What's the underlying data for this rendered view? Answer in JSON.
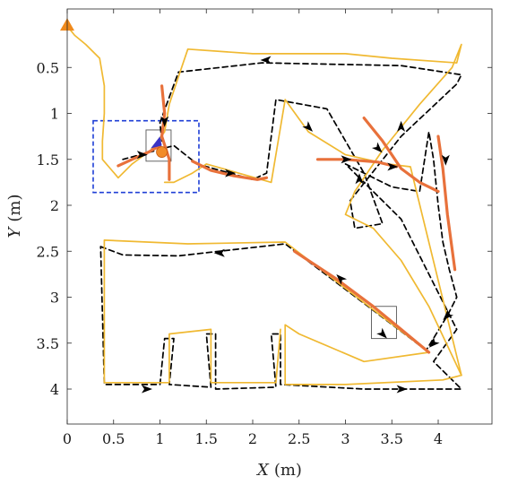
{
  "chart_data": {
    "type": "line",
    "title": "",
    "xlabel": "X (m)",
    "ylabel": "Y (m)",
    "xlabel_parts": {
      "var": "X",
      "unit": "(m)"
    },
    "ylabel_parts": {
      "var": "Y",
      "unit": "(m)"
    },
    "xlim": [
      0,
      4.6
    ],
    "ylim": [
      0,
      4.4
    ],
    "y_axis_inverted": true,
    "xticks": [
      0,
      0.5,
      1,
      1.5,
      2,
      2.5,
      3,
      3.5,
      4
    ],
    "xtick_labels": [
      "0",
      "0.5",
      "1",
      "1.5",
      "2",
      "2.5",
      "3",
      "3.5",
      "4"
    ],
    "yticks": [
      0.5,
      1,
      1.5,
      2,
      2.5,
      3,
      3.5,
      4
    ],
    "ytick_labels": [
      "0.5",
      "1",
      "1.5",
      "2",
      "2.5",
      "3",
      "3.5",
      "4"
    ],
    "grid": false,
    "legend": "none",
    "start_marker": {
      "x": 0.0,
      "y": 0.05
    },
    "series": [
      {
        "style": "dashed",
        "color": "#000000",
        "points": [
          [
            0.36,
            2.45
          ],
          [
            0.6,
            2.54
          ],
          [
            1.2,
            2.55
          ],
          [
            2.35,
            2.42
          ],
          [
            3.9,
            3.6
          ],
          [
            3.87,
            3.58
          ],
          [
            4.1,
            3.2
          ],
          [
            4.2,
            3.0
          ],
          [
            4.12,
            2.7
          ],
          [
            4.05,
            2.4
          ],
          [
            4.0,
            2.0
          ],
          [
            3.95,
            1.5
          ],
          [
            3.9,
            1.2
          ],
          [
            3.8,
            1.85
          ],
          [
            3.5,
            1.8
          ],
          [
            3.0,
            1.55
          ],
          [
            3.15,
            1.7
          ],
          [
            3.6,
            2.15
          ],
          [
            4.2,
            3.35
          ],
          [
            3.95,
            3.7
          ],
          [
            4.25,
            4.0
          ],
          [
            3.2,
            4.0
          ],
          [
            2.3,
            3.95
          ],
          [
            2.3,
            3.4
          ],
          [
            2.2,
            3.4
          ],
          [
            2.25,
            3.98
          ],
          [
            1.6,
            4.0
          ],
          [
            1.6,
            3.4
          ],
          [
            1.5,
            3.4
          ],
          [
            1.55,
            3.98
          ],
          [
            1.1,
            3.95
          ],
          [
            1.15,
            3.45
          ],
          [
            1.05,
            3.45
          ],
          [
            1.0,
            3.95
          ],
          [
            0.4,
            3.95
          ],
          [
            0.36,
            2.45
          ]
        ]
      },
      {
        "style": "dashed",
        "color": "#000000",
        "points": [
          [
            1.02,
            1.3
          ],
          [
            1.0,
            1.1
          ],
          [
            1.2,
            0.55
          ],
          [
            2.1,
            0.45
          ],
          [
            3.6,
            0.48
          ],
          [
            4.25,
            0.58
          ],
          [
            4.2,
            0.68
          ],
          [
            3.6,
            1.25
          ],
          [
            3.05,
            1.95
          ],
          [
            3.1,
            2.25
          ],
          [
            3.4,
            2.2
          ],
          [
            3.2,
            1.65
          ],
          [
            2.8,
            0.95
          ],
          [
            2.25,
            0.85
          ],
          [
            2.15,
            1.65
          ],
          [
            2.0,
            1.72
          ],
          [
            1.4,
            1.55
          ],
          [
            1.15,
            1.35
          ],
          [
            0.6,
            1.5
          ]
        ]
      },
      {
        "style": "solid",
        "color": "#f0b932",
        "points": [
          [
            0.0,
            0.05
          ],
          [
            0.08,
            0.15
          ],
          [
            0.2,
            0.25
          ],
          [
            0.35,
            0.4
          ],
          [
            0.4,
            0.7
          ],
          [
            0.4,
            1.0
          ],
          [
            0.38,
            1.3
          ],
          [
            0.38,
            1.5
          ],
          [
            0.55,
            1.7
          ],
          [
            0.7,
            1.55
          ],
          [
            0.9,
            1.4
          ],
          [
            1.05,
            1.2
          ],
          [
            1.1,
            0.9
          ],
          [
            1.2,
            0.6
          ],
          [
            1.3,
            0.3
          ],
          [
            2.0,
            0.35
          ],
          [
            3.0,
            0.35
          ],
          [
            3.5,
            0.4
          ],
          [
            4.2,
            0.45
          ],
          [
            4.25,
            0.25
          ],
          [
            4.15,
            0.5
          ],
          [
            3.8,
            0.9
          ],
          [
            3.4,
            1.4
          ],
          [
            3.1,
            1.85
          ],
          [
            3.0,
            2.1
          ],
          [
            3.3,
            2.25
          ],
          [
            3.6,
            2.6
          ],
          [
            3.9,
            3.1
          ],
          [
            4.25,
            3.85
          ],
          [
            4.05,
            3.9
          ],
          [
            3.0,
            3.95
          ],
          [
            2.35,
            3.95
          ],
          [
            2.35,
            3.3
          ],
          [
            2.5,
            3.4
          ],
          [
            3.2,
            3.7
          ],
          [
            3.9,
            3.6
          ],
          [
            2.35,
            2.4
          ],
          [
            1.3,
            2.42
          ],
          [
            0.4,
            2.38
          ],
          [
            0.4,
            3.93
          ],
          [
            1.1,
            3.93
          ],
          [
            1.1,
            3.4
          ],
          [
            1.55,
            3.35
          ],
          [
            1.55,
            3.93
          ],
          [
            2.25,
            3.93
          ],
          [
            2.3,
            3.35
          ]
        ]
      },
      {
        "style": "solid",
        "color": "#f0b932",
        "points": [
          [
            1.05,
            1.75
          ],
          [
            1.15,
            1.75
          ],
          [
            1.35,
            1.65
          ],
          [
            1.5,
            1.55
          ],
          [
            2.2,
            1.75
          ],
          [
            2.35,
            0.85
          ],
          [
            2.6,
            1.2
          ],
          [
            3.0,
            1.45
          ],
          [
            3.45,
            1.55
          ],
          [
            3.7,
            1.58
          ],
          [
            4.25,
            3.85
          ]
        ]
      },
      {
        "style": "solid",
        "color": "#e8713b",
        "points": [
          [
            0.55,
            1.57
          ],
          [
            0.7,
            1.5
          ],
          [
            0.88,
            1.42
          ],
          [
            1.0,
            1.35
          ]
        ]
      },
      {
        "style": "solid",
        "color": "#e8713b",
        "points": [
          [
            1.02,
            0.7
          ],
          [
            1.05,
            1.0
          ],
          [
            1.02,
            1.25
          ],
          [
            1.1,
            1.5
          ],
          [
            1.1,
            1.72
          ]
        ]
      },
      {
        "style": "solid",
        "color": "#e8713b",
        "points": [
          [
            1.35,
            1.52
          ],
          [
            1.55,
            1.62
          ],
          [
            1.8,
            1.68
          ],
          [
            2.05,
            1.72
          ],
          [
            2.15,
            1.7
          ]
        ]
      },
      {
        "style": "solid",
        "color": "#e8713b",
        "points": [
          [
            2.7,
            1.5
          ],
          [
            3.0,
            1.5
          ],
          [
            3.35,
            1.53
          ],
          [
            3.55,
            1.58
          ]
        ]
      },
      {
        "style": "solid",
        "color": "#e8713b",
        "points": [
          [
            3.2,
            1.05
          ],
          [
            3.4,
            1.3
          ],
          [
            3.6,
            1.6
          ],
          [
            3.8,
            1.75
          ],
          [
            4.0,
            1.85
          ]
        ]
      },
      {
        "style": "solid",
        "color": "#e8713b",
        "points": [
          [
            4.0,
            1.25
          ],
          [
            4.05,
            1.6
          ],
          [
            4.1,
            2.1
          ],
          [
            4.18,
            2.7
          ]
        ]
      },
      {
        "style": "solid",
        "color": "#e8713b",
        "points": [
          [
            2.45,
            2.5
          ],
          [
            2.9,
            2.8
          ],
          [
            3.3,
            3.1
          ],
          [
            3.6,
            3.35
          ],
          [
            3.9,
            3.6
          ]
        ]
      }
    ],
    "arrows": [
      {
        "x": 2.15,
        "y": 0.42,
        "dir": "left"
      },
      {
        "x": 1.05,
        "y": 1.08,
        "dir": "down"
      },
      {
        "x": 0.8,
        "y": 1.45,
        "dir": "right"
      },
      {
        "x": 1.75,
        "y": 1.65,
        "dir": "right"
      },
      {
        "x": 2.6,
        "y": 1.15,
        "dir": "down-right"
      },
      {
        "x": 3.0,
        "y": 1.5,
        "dir": "right"
      },
      {
        "x": 3.5,
        "y": 1.58,
        "dir": "right"
      },
      {
        "x": 3.6,
        "y": 1.15,
        "dir": "up"
      },
      {
        "x": 3.35,
        "y": 1.38,
        "dir": "down-right"
      },
      {
        "x": 3.15,
        "y": 1.72,
        "dir": "up"
      },
      {
        "x": 4.08,
        "y": 1.5,
        "dir": "down"
      },
      {
        "x": 4.1,
        "y": 3.2,
        "dir": "down-left"
      },
      {
        "x": 3.95,
        "y": 3.5,
        "dir": "down-left"
      },
      {
        "x": 1.65,
        "y": 2.52,
        "dir": "left"
      },
      {
        "x": 2.95,
        "y": 2.8,
        "dir": "up-left"
      },
      {
        "x": 3.4,
        "y": 3.4,
        "dir": "down-right"
      },
      {
        "x": 3.6,
        "y": 4.0,
        "dir": "right"
      },
      {
        "x": 0.85,
        "y": 4.0,
        "dir": "right"
      }
    ],
    "regions": [
      {
        "kind": "blue-dashed-box",
        "x0": 0.28,
        "y0": 1.08,
        "x1": 1.42,
        "y1": 1.86
      },
      {
        "kind": "gray-box",
        "x0": 0.85,
        "y0": 1.18,
        "x1": 1.12,
        "y1": 1.52
      },
      {
        "kind": "gray-box",
        "x0": 3.28,
        "y0": 3.1,
        "x1": 3.55,
        "y1": 3.45
      }
    ],
    "markers": [
      {
        "kind": "orange-dot",
        "x": 1.02,
        "y": 1.42
      },
      {
        "kind": "blue-dot",
        "x": 0.95,
        "y": 1.3
      }
    ]
  }
}
